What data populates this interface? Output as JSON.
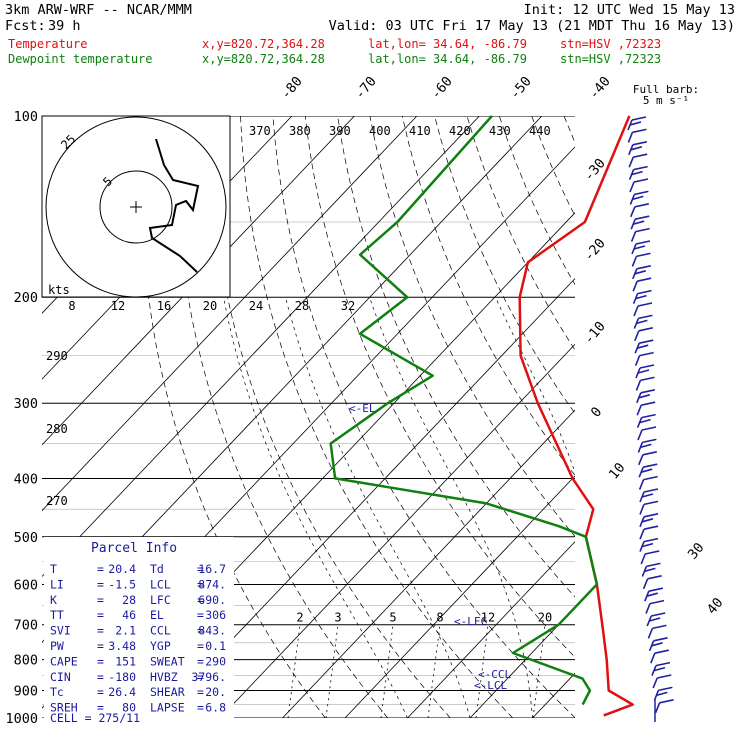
{
  "header": {
    "model": "3km ARW-WRF -- NCAR/MMM",
    "init": "Init: 12 UTC Wed 15 May 13",
    "fcst_label": "Fcst:",
    "fcst_value": "39 h",
    "valid": "Valid: 03 UTC Fri 17 May 13 (21 MDT Thu 16 May 13)",
    "temp_line": {
      "name": "Temperature",
      "xy": "x,y=820.72,364.28",
      "latlon": "lat,lon= 34.64, -86.79",
      "stn": "stn=HSV ,72323"
    },
    "dew_line": {
      "name": "Dewpoint temperature",
      "xy": "x,y=820.72,364.28",
      "latlon": "lat,lon= 34.64, -86.79",
      "stn": "stn=HSV ,72323"
    }
  },
  "colors": {
    "temperature": "#e01010",
    "dewpoint": "#108010",
    "text": "#000000",
    "parcel": "#1a1aa0",
    "barbs": "#2020a0"
  },
  "barb_legend": {
    "line1": "Full barb:",
    "line2": "5 m s⁻¹"
  },
  "hodograph": {
    "ring_small": "5",
    "ring_large": "25",
    "kts_label": "kts"
  },
  "lcl_marker": "<-LCL",
  "ccl_marker": "<-CCL",
  "lfc_marker": "<-LFC",
  "el_marker": "<-EL",
  "parcel_info": {
    "title": "Parcel Info",
    "rows": [
      {
        "l1": "T",
        "v1": "20.4",
        "l2": "Td",
        "v2": "16.7"
      },
      {
        "l1": "LI",
        "v1": "-1.5",
        "l2": "LCL",
        "v2": "874."
      },
      {
        "l1": "K",
        "v1": "28",
        "l2": "LFC",
        "v2": "690."
      },
      {
        "l1": "TT",
        "v1": "46",
        "l2": "EL",
        "v2": "306"
      },
      {
        "l1": "SVI",
        "v1": "2.1",
        "l2": "CCL",
        "v2": "843."
      },
      {
        "l1": "PW",
        "v1": "3.48",
        "l2": "YGP",
        "v2": "0.1"
      },
      {
        "l1": "CAPE",
        "v1": "151",
        "l2": "SWEAT",
        "v2": "290"
      },
      {
        "l1": "CIN",
        "v1": "-180",
        "l2": "HVBZ",
        "v2": "3796."
      },
      {
        "l1": "Tc",
        "v1": "26.4",
        "l2": "SHEAR",
        "v2": "20."
      },
      {
        "l1": "SREH",
        "v1": "80",
        "l2": "LAPSE",
        "v2": "6.8"
      }
    ],
    "last": "CELL = 275/11"
  },
  "chart_data": {
    "type": "line",
    "ylabel_unit": "hPa",
    "y_scale": "log",
    "pressure_ticks": [
      "100",
      "200",
      "300",
      "400",
      "500",
      "600",
      "700",
      "800",
      "900",
      "1000"
    ],
    "isotherm_labels_top": [
      "-80",
      "-70",
      "-60",
      "-50",
      "-40"
    ],
    "isotherm_labels_right": [
      "-30",
      "-20",
      "-10",
      "0",
      "10",
      "30",
      "40"
    ],
    "theta_e_labels": [
      "370",
      "380",
      "390",
      "400",
      "410",
      "420",
      "430",
      "440"
    ],
    "mixing_ratio_labels": [
      "2",
      "3",
      "5",
      "8",
      "12",
      "20"
    ],
    "dry_adiabat_labels": [
      "290",
      "280",
      "270"
    ],
    "hodograph_speed_labels": [
      "8",
      "12",
      "16",
      "20",
      "24",
      "28",
      "32"
    ],
    "series": [
      {
        "name": "Temperature",
        "points": [
          {
            "p": 100,
            "t": -66
          },
          {
            "p": 150,
            "t": -57
          },
          {
            "p": 175,
            "t": -60
          },
          {
            "p": 200,
            "t": -56
          },
          {
            "p": 250,
            "t": -47
          },
          {
            "p": 300,
            "t": -37
          },
          {
            "p": 400,
            "t": -20
          },
          {
            "p": 450,
            "t": -12
          },
          {
            "p": 500,
            "t": -9
          },
          {
            "p": 600,
            "t": 0
          },
          {
            "p": 700,
            "t": 7
          },
          {
            "p": 800,
            "t": 13
          },
          {
            "p": 900,
            "t": 18
          },
          {
            "p": 950,
            "t": 24
          },
          {
            "p": 990,
            "t": 21
          }
        ]
      },
      {
        "name": "Dewpoint temperature",
        "points": [
          {
            "p": 100,
            "t": -88
          },
          {
            "p": 150,
            "t": -87
          },
          {
            "p": 170,
            "t": -88
          },
          {
            "p": 200,
            "t": -74
          },
          {
            "p": 230,
            "t": -76
          },
          {
            "p": 270,
            "t": -58
          },
          {
            "p": 300,
            "t": -61
          },
          {
            "p": 350,
            "t": -64
          },
          {
            "p": 400,
            "t": -58
          },
          {
            "p": 440,
            "t": -30
          },
          {
            "p": 480,
            "t": -15
          },
          {
            "p": 500,
            "t": -9
          },
          {
            "p": 600,
            "t": 0
          },
          {
            "p": 700,
            "t": 0
          },
          {
            "p": 780,
            "t": -3
          },
          {
            "p": 860,
            "t": 12
          },
          {
            "p": 900,
            "t": 15
          },
          {
            "p": 950,
            "t": 16
          }
        ]
      }
    ],
    "wind_barb_count": 48
  }
}
